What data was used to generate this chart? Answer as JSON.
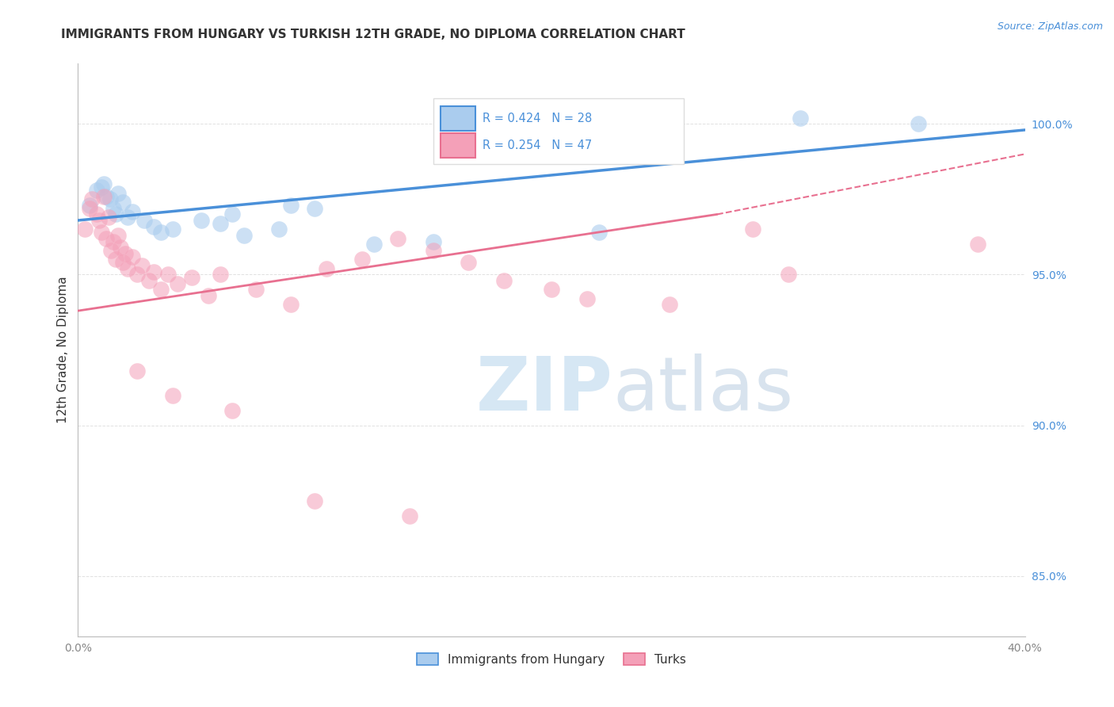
{
  "title": "IMMIGRANTS FROM HUNGARY VS TURKISH 12TH GRADE, NO DIPLOMA CORRELATION CHART",
  "source": "Source: ZipAtlas.com",
  "ylabel": "12th Grade, No Diploma",
  "xlim": [
    0.0,
    40.0
  ],
  "ylim": [
    83.0,
    102.0
  ],
  "yticks": [
    85.0,
    90.0,
    95.0,
    100.0
  ],
  "xticks": [
    0.0,
    10.0,
    20.0,
    30.0,
    40.0
  ],
  "xtick_labels": [
    "0.0%",
    "",
    "",
    "",
    "40.0%"
  ],
  "ytick_labels": [
    "85.0%",
    "90.0%",
    "95.0%",
    "100.0%"
  ],
  "legend_entries": [
    {
      "label": "R = 0.424   N = 28",
      "color": "#6baed6"
    },
    {
      "label": "R = 0.254   N = 47",
      "color": "#f4a0b0"
    }
  ],
  "legend_labels_bottom": [
    "Immigrants from Hungary",
    "Turks"
  ],
  "hungary_color": "#4a90d9",
  "turks_color": "#e87090",
  "hungary_scatter_color": "#aaccee",
  "turks_scatter_color": "#f4a0b8",
  "background_color": "#ffffff",
  "grid_color": "#cccccc",
  "title_color": "#333333",
  "ytick_color": "#4a90d9",
  "xtick_color": "#888888",
  "source_color": "#4a90d9",
  "legend_text_color": "#4a90d9",
  "hungary_line": [
    0.0,
    96.8,
    40.0,
    99.8
  ],
  "turks_line_solid": [
    0.0,
    93.8,
    27.0,
    97.0
  ],
  "turks_line_dashed": [
    27.0,
    97.0,
    40.0,
    99.0
  ],
  "watermark_zip_color": "#c8dff0",
  "watermark_atlas_color": "#b8cfe0"
}
